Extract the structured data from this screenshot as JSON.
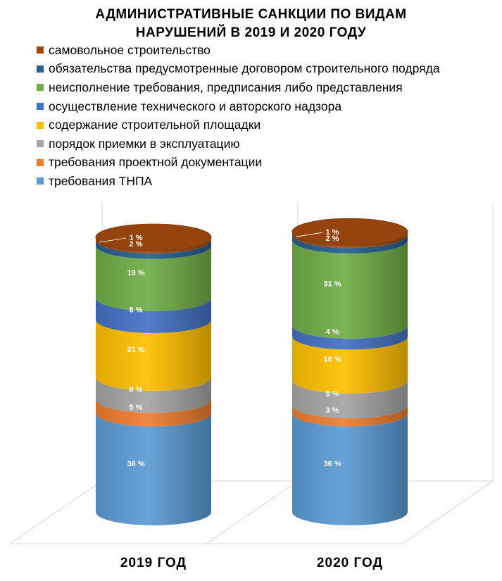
{
  "chart_data": {
    "type": "bar",
    "stacked": true,
    "style": "3d-cylinder",
    "title_lines": [
      "АДМИНИСТРАТИВНЫЕ САНКЦИИ ПО ВИДАМ",
      "НАРУШЕНИЙ В 2019 И 2020 ГОДУ"
    ],
    "categories": [
      "2019 ГОД",
      "2020 ГОД"
    ],
    "unit": "%",
    "legend_position": "top",
    "series": [
      {
        "name": "требования ТНПА",
        "color": "#5b9bd5",
        "values": [
          36,
          36
        ]
      },
      {
        "name": "требования проектной документации",
        "color": "#ed7d31",
        "values": [
          5,
          3
        ]
      },
      {
        "name": "порядок приемки в эксплуатацию",
        "color": "#a5a5a5",
        "values": [
          8,
          9
        ]
      },
      {
        "name": "содержание строительной площадки",
        "color": "#ffc000",
        "values": [
          21,
          16
        ]
      },
      {
        "name": "осуществление технического и авторского надзора",
        "color": "#4472c4",
        "values": [
          8,
          4
        ]
      },
      {
        "name": "неисполнение требования, предписания либо представления",
        "color": "#70ad47",
        "values": [
          19,
          31
        ]
      },
      {
        "name": "обязательства предусмотренные договором строительного подряда",
        "color": "#255e91",
        "values": [
          2,
          2
        ]
      },
      {
        "name": "самовольное строительство",
        "color": "#9e480e",
        "values": [
          1,
          1
        ]
      }
    ],
    "data_labels": [
      [
        "36 %",
        "36 %"
      ],
      [
        "5 %",
        "3 %"
      ],
      [
        "8 %",
        "9 %"
      ],
      [
        "21 %",
        "16 %"
      ],
      [
        "8 %",
        "4 %"
      ],
      [
        "19 %",
        "31 %"
      ],
      [
        "2 %",
        "2 %"
      ],
      [
        "1 %",
        "1 %"
      ]
    ],
    "grid": true
  }
}
